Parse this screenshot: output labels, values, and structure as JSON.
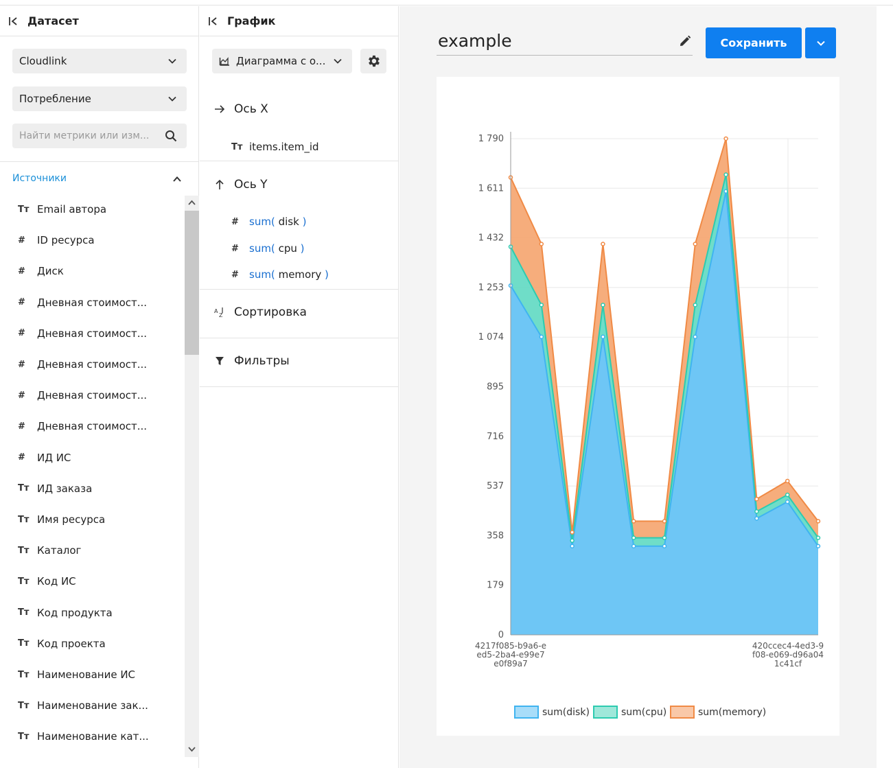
{
  "dataset_panel": {
    "title": "Датасет",
    "dataset_select": "Cloudlink",
    "category_select": "Потребление",
    "search_placeholder": "Найти метрики или изм...",
    "sources_title": "Источники",
    "fields": [
      {
        "type": "Tт",
        "label": "Email автора"
      },
      {
        "type": "#",
        "label": "ID ресурса"
      },
      {
        "type": "#",
        "label": "Диск"
      },
      {
        "type": "#",
        "label": "Дневная стоимост..."
      },
      {
        "type": "#",
        "label": "Дневная стоимост..."
      },
      {
        "type": "#",
        "label": "Дневная стоимост..."
      },
      {
        "type": "#",
        "label": "Дневная стоимост..."
      },
      {
        "type": "#",
        "label": "Дневная стоимост..."
      },
      {
        "type": "#",
        "label": "ИД ИС"
      },
      {
        "type": "Tт",
        "label": "ИД заказа"
      },
      {
        "type": "Tт",
        "label": "Имя ресурса"
      },
      {
        "type": "Tт",
        "label": "Каталог"
      },
      {
        "type": "Tт",
        "label": "Код ИС"
      },
      {
        "type": "Tт",
        "label": "Код продукта"
      },
      {
        "type": "Tт",
        "label": "Код проекта"
      },
      {
        "type": "Tт",
        "label": "Наименование ИС"
      },
      {
        "type": "Tт",
        "label": "Наименование зак..."
      },
      {
        "type": "Tт",
        "label": "Наименование кат..."
      }
    ]
  },
  "chart_panel": {
    "title": "График",
    "chart_type": "Диаграмма с о...",
    "x_axis_title": "Ось X",
    "x_field": "items.item_id",
    "y_axis_title": "Ось Y",
    "y_fields": [
      {
        "fn": "sum(",
        "arg": "disk",
        "close": ")"
      },
      {
        "fn": "sum(",
        "arg": "cpu",
        "close": ")"
      },
      {
        "fn": "sum(",
        "arg": "memory",
        "close": ")"
      }
    ],
    "sort_title": "Сортировка",
    "filters_title": "Фильтры"
  },
  "editor": {
    "chart_name": "example",
    "save_label": "Сохранить"
  },
  "colors": {
    "accent": "#0f7ff0",
    "link": "#1a8fd8",
    "disk": "#6ec6f5",
    "cpu": "#5fd9c2",
    "memory": "#f5a46e"
  },
  "chart_data": {
    "type": "area",
    "stacked": true,
    "x": [
      "4217f085-b9a6-eed5-2ba4-e99e7e0f89a7",
      "",
      "",
      "",
      "",
      "",
      "",
      "",
      "",
      "420ccec4-4ed3-9f08-e069-d96a041c41cf",
      ""
    ],
    "x_tick_labels": [
      "4217f085-b9a6-e",
      "ed5-2ba4-e99e7",
      "e0f89a7",
      "420ccec4-4ed3-9",
      "f08-e069-d96a04",
      "1c41cf"
    ],
    "y_ticks": [
      "0",
      "179",
      "358",
      "537",
      "716",
      "895",
      "1 074",
      "1 253",
      "1 432",
      "1 611",
      "1 790"
    ],
    "ylim": [
      0,
      1790
    ],
    "series": [
      {
        "name": "sum(disk)",
        "values": [
          1260,
          1075,
          320,
          1075,
          320,
          320,
          1075,
          1600,
          420,
          480,
          320
        ]
      },
      {
        "name": "sum(cpu)",
        "values": [
          140,
          115,
          20,
          115,
          30,
          30,
          115,
          60,
          25,
          25,
          30
        ]
      },
      {
        "name": "sum(memory)",
        "values": [
          250,
          220,
          30,
          220,
          60,
          60,
          220,
          130,
          45,
          50,
          60
        ]
      }
    ],
    "legend": [
      "sum(disk)",
      "sum(cpu)",
      "sum(memory)"
    ],
    "legend_position": "bottom",
    "grid": true
  }
}
